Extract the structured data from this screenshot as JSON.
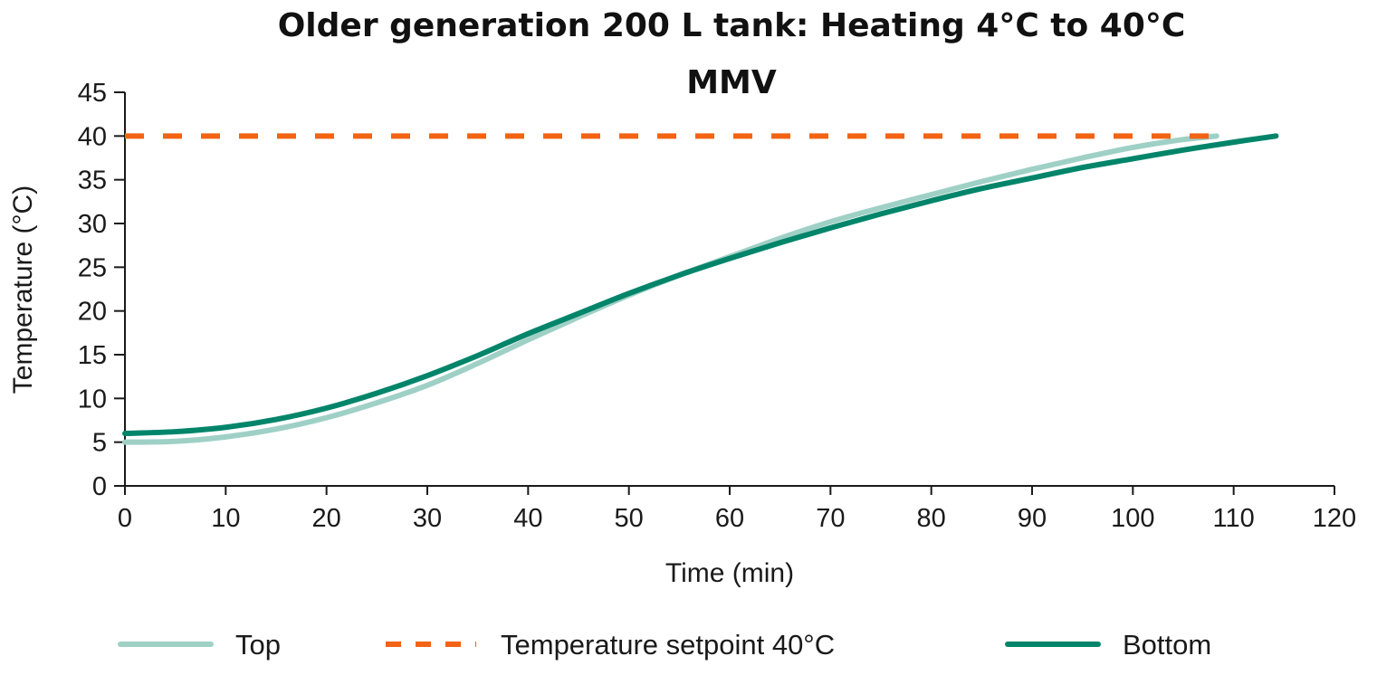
{
  "chart_data": {
    "type": "line",
    "title": "Older generation 200 L tank: Heating 4°C to 40°C",
    "subtitle": "MMV",
    "xlabel": "Time (min)",
    "ylabel": "Temperature (°C)",
    "xlim": [
      0,
      120
    ],
    "ylim": [
      0,
      45
    ],
    "xticks": [
      "0",
      "10",
      "20",
      "30",
      "40",
      "50",
      "60",
      "70",
      "80",
      "90",
      "100",
      "110",
      "120"
    ],
    "yticks": [
      "0",
      "5",
      "10",
      "15",
      "20",
      "25",
      "30",
      "35",
      "40",
      "45"
    ],
    "grid": false,
    "legend_position": "bottom",
    "series": [
      {
        "name": "Top",
        "color": "#9fd0c6",
        "style": "solid",
        "x": [
          0,
          5,
          10,
          15,
          20,
          25,
          30,
          35,
          40,
          45,
          50,
          55,
          60,
          65,
          70,
          75,
          80,
          85,
          90,
          95,
          100,
          105,
          108.3
        ],
        "y": [
          5.0,
          5.1,
          5.6,
          6.5,
          7.8,
          9.5,
          11.5,
          14.0,
          16.7,
          19.3,
          21.8,
          24.1,
          26.2,
          28.3,
          30.2,
          31.8,
          33.3,
          34.8,
          36.2,
          37.5,
          38.7,
          39.6,
          40.0
        ]
      },
      {
        "name": "Temperature setpoint 40°C",
        "color": "#f26313",
        "style": "dashed",
        "x": [
          0,
          108
        ],
        "y": [
          40,
          40
        ]
      },
      {
        "name": "Bottom",
        "color": "#00856a",
        "style": "solid",
        "x": [
          0,
          5,
          10,
          15,
          20,
          25,
          30,
          35,
          40,
          45,
          50,
          55,
          60,
          65,
          70,
          75,
          80,
          85,
          90,
          95,
          100,
          105,
          110,
          114.2
        ],
        "y": [
          6.0,
          6.2,
          6.7,
          7.6,
          8.9,
          10.6,
          12.6,
          14.9,
          17.4,
          19.7,
          22.0,
          24.1,
          26.0,
          27.8,
          29.5,
          31.1,
          32.6,
          34.0,
          35.2,
          36.4,
          37.4,
          38.4,
          39.3,
          40.0
        ]
      }
    ]
  }
}
